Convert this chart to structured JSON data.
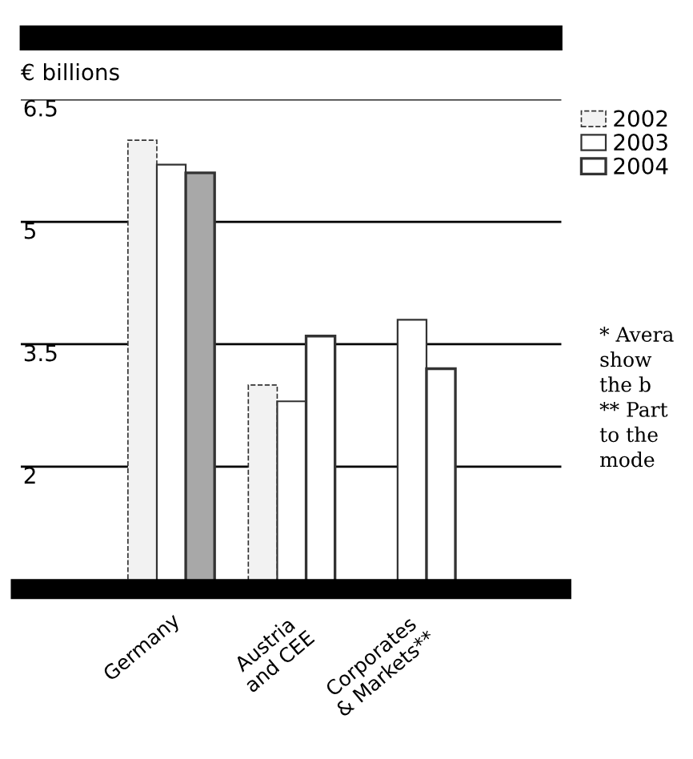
{
  "chart_data": {
    "type": "bar",
    "ylabel": "€ billions",
    "categories": [
      "Germany",
      "Austria\nand CEE",
      "Corporates\n& Markets**"
    ],
    "series": [
      {
        "name": "2002",
        "color": "#f2f2f2",
        "values": [
          6.0,
          3.0,
          null
        ]
      },
      {
        "name": "2003",
        "color": "#ffffff",
        "values": [
          5.7,
          2.8,
          3.8
        ]
      },
      {
        "name": "2004",
        "color": "#ffffff",
        "colors": [
          "#a8a8a8",
          "#ffffff",
          "#ffffff"
        ],
        "values": [
          5.6,
          3.6,
          3.2
        ]
      }
    ],
    "ylim": [
      0.5,
      6.5
    ],
    "yticks": [
      2,
      3.5,
      5,
      6.5
    ],
    "grid": "y",
    "legend": "top right",
    "annotations": [
      "* Avera",
      "show",
      "the b",
      "** Part",
      "to the",
      "mode"
    ]
  }
}
